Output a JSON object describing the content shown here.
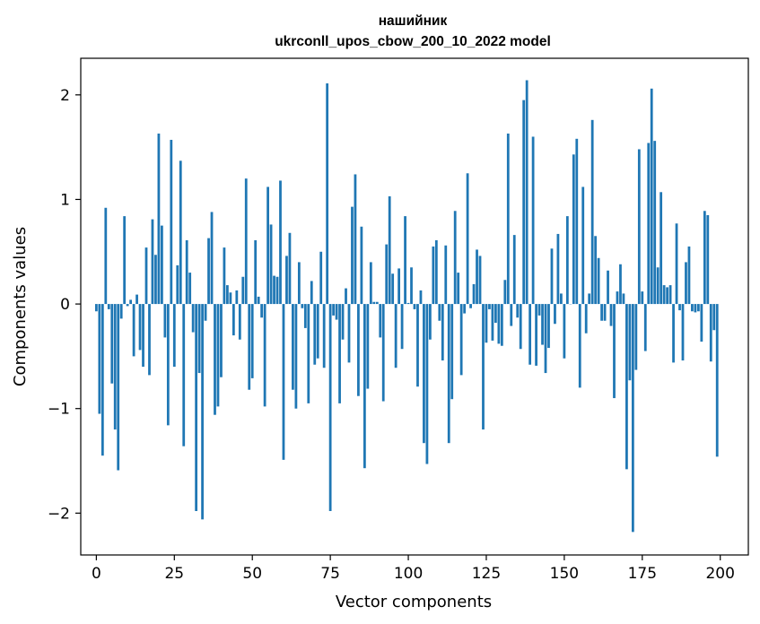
{
  "chart_data": {
    "type": "bar",
    "title": "нашийник",
    "subtitle": "ukrconll_upos_cbow_200_10_2022 model",
    "xlabel": "Vector components",
    "ylabel": "Components values",
    "xlim": [
      -5,
      209
    ],
    "ylim": [
      -2.4,
      2.35
    ],
    "xticks": [
      0,
      25,
      50,
      75,
      100,
      125,
      150,
      175,
      200
    ],
    "yticks": [
      -2,
      -1,
      0,
      1,
      2
    ],
    "ytick_labels": [
      "−2",
      "−1",
      "0",
      "1",
      "2"
    ],
    "bar_color": "#1f77b4",
    "grid": false,
    "x": [
      0,
      1,
      2,
      3,
      4,
      5,
      6,
      7,
      8,
      9,
      10,
      11,
      12,
      13,
      14,
      15,
      16,
      17,
      18,
      19,
      20,
      21,
      22,
      23,
      24,
      25,
      26,
      27,
      28,
      29,
      30,
      31,
      32,
      33,
      34,
      35,
      36,
      37,
      38,
      39,
      40,
      41,
      42,
      43,
      44,
      45,
      46,
      47,
      48,
      49,
      50,
      51,
      52,
      53,
      54,
      55,
      56,
      57,
      58,
      59,
      60,
      61,
      62,
      63,
      64,
      65,
      66,
      67,
      68,
      69,
      70,
      71,
      72,
      73,
      74,
      75,
      76,
      77,
      78,
      79,
      80,
      81,
      82,
      83,
      84,
      85,
      86,
      87,
      88,
      89,
      90,
      91,
      92,
      93,
      94,
      95,
      96,
      97,
      98,
      99,
      100,
      101,
      102,
      103,
      104,
      105,
      106,
      107,
      108,
      109,
      110,
      111,
      112,
      113,
      114,
      115,
      116,
      117,
      118,
      119,
      120,
      121,
      122,
      123,
      124,
      125,
      126,
      127,
      128,
      129,
      130,
      131,
      132,
      133,
      134,
      135,
      136,
      137,
      138,
      139,
      140,
      141,
      142,
      143,
      144,
      145,
      146,
      147,
      148,
      149,
      150,
      151,
      152,
      153,
      154,
      155,
      156,
      157,
      158,
      159,
      160,
      161,
      162,
      163,
      164,
      165,
      166,
      167,
      168,
      169,
      170,
      171,
      172,
      173,
      174,
      175,
      176,
      177,
      178,
      179,
      180,
      181,
      182,
      183,
      184,
      185,
      186,
      187,
      188,
      189,
      190,
      191,
      192,
      193,
      194,
      195,
      196,
      197,
      198,
      199
    ],
    "values": [
      -0.07,
      -1.05,
      -1.45,
      0.92,
      -0.05,
      -0.76,
      -1.2,
      -1.59,
      -0.14,
      0.84,
      -0.02,
      0.04,
      -0.5,
      0.09,
      -0.44,
      -0.6,
      0.54,
      -0.68,
      0.81,
      0.47,
      1.63,
      0.75,
      -0.32,
      -1.16,
      1.57,
      -0.6,
      0.37,
      1.37,
      -1.36,
      0.61,
      0.3,
      -0.27,
      -1.98,
      -0.66,
      -2.06,
      -0.16,
      0.63,
      0.88,
      -1.06,
      -0.98,
      -0.7,
      0.54,
      0.18,
      0.11,
      -0.3,
      0.13,
      -0.34,
      0.26,
      1.2,
      -0.82,
      -0.71,
      0.61,
      0.07,
      -0.13,
      -0.98,
      1.12,
      0.76,
      0.27,
      0.26,
      1.18,
      -1.49,
      0.46,
      0.68,
      -0.82,
      -1.0,
      0.4,
      -0.04,
      -0.23,
      -0.95,
      0.22,
      -0.58,
      -0.52,
      0.5,
      -0.61,
      2.11,
      -1.98,
      -0.11,
      -0.15,
      -0.95,
      -0.34,
      0.15,
      -0.56,
      0.93,
      1.24,
      -0.88,
      0.74,
      -1.57,
      -0.81,
      0.4,
      0.02,
      0.02,
      -0.32,
      -0.93,
      0.57,
      1.03,
      0.29,
      -0.61,
      0.34,
      -0.43,
      0.84,
      0.01,
      0.35,
      -0.05,
      -0.79,
      0.13,
      -1.33,
      -1.53,
      -0.34,
      0.55,
      0.61,
      -0.16,
      -0.54,
      0.56,
      -1.33,
      -0.91,
      0.89,
      0.3,
      -0.68,
      -0.09,
      1.25,
      -0.04,
      0.19,
      0.52,
      0.46,
      -1.2,
      -0.37,
      -0.05,
      -0.35,
      -0.18,
      -0.38,
      -0.4,
      0.23,
      1.63,
      -0.21,
      0.66,
      -0.13,
      -0.43,
      1.95,
      2.14,
      -0.58,
      1.6,
      -0.59,
      -0.11,
      -0.39,
      -0.66,
      -0.42,
      0.53,
      -0.19,
      0.67,
      0.1,
      -0.52,
      0.84,
      0.0,
      1.43,
      1.58,
      -0.8,
      1.12,
      -0.28,
      0.1,
      1.76,
      0.65,
      0.44,
      -0.16,
      -0.16,
      0.32,
      -0.21,
      -0.9,
      0.12,
      0.38,
      0.1,
      -1.58,
      -0.73,
      -2.18,
      -0.63,
      1.48,
      0.12,
      -0.45,
      1.54,
      2.06,
      1.56,
      0.35,
      1.07,
      0.18,
      0.16,
      0.18,
      -0.56,
      0.77,
      -0.06,
      -0.54,
      0.4,
      0.55,
      -0.07,
      -0.08,
      -0.07,
      -0.36,
      0.89,
      0.85,
      -0.55,
      -0.25,
      -1.46
    ]
  }
}
